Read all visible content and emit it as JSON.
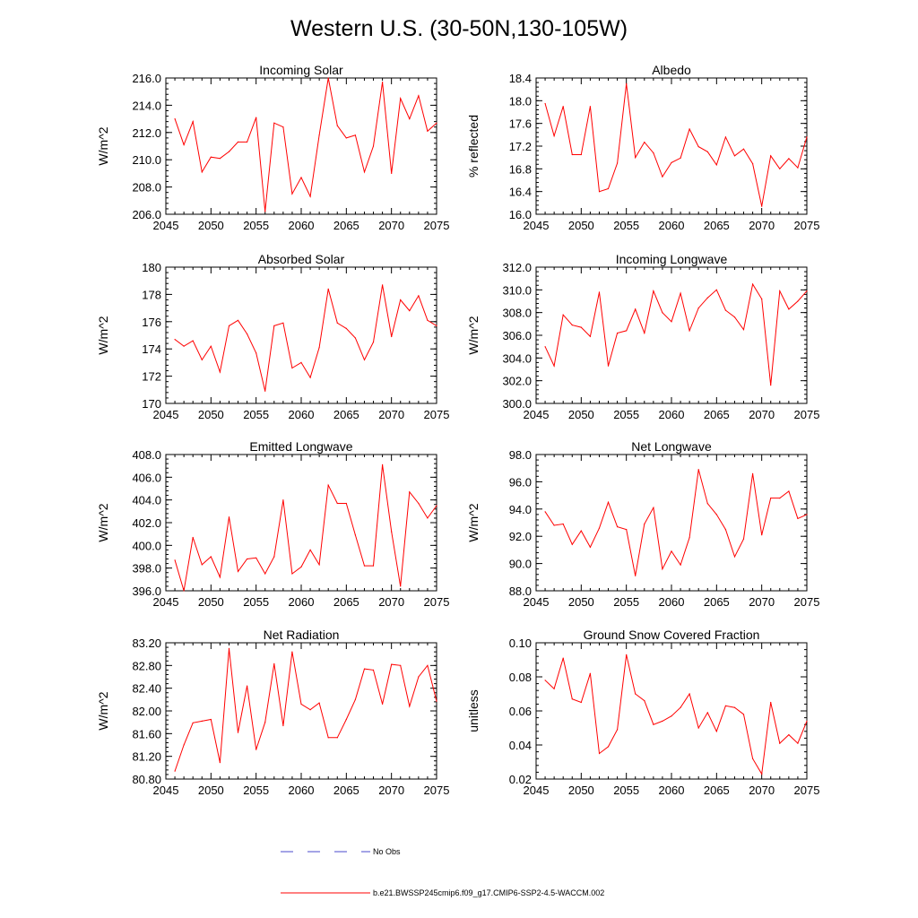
{
  "figure_title": "Western U.S. (30-50N,130-105W)",
  "legend": {
    "entries": [
      {
        "label": "No Obs",
        "color": "#4a4acd",
        "style": "dashed"
      },
      {
        "label": "b.e21.BWSSP245cmip6.f09_g17.CMIP6-SSP2-4.5-WACCM.002",
        "color": "#ff0000",
        "style": "solid"
      }
    ]
  },
  "colors": {
    "series": "#ff0000",
    "axis": "#000000",
    "obs": "#4a4acd"
  },
  "chart_data": [
    {
      "type": "line",
      "title": "Incoming Solar",
      "xlabel": "",
      "ylabel": "W/m^2",
      "xlim": [
        2045,
        2075
      ],
      "ylim": [
        206,
        216
      ],
      "yticks": [
        206,
        208,
        210,
        212,
        214,
        216
      ],
      "ytick_labels": [
        "206.0",
        "208.0",
        "210.0",
        "212.0",
        "214.0",
        "216.0"
      ],
      "y_minor": 0.4,
      "xticks": [
        2045,
        2050,
        2055,
        2060,
        2065,
        2070,
        2075
      ],
      "xtick_labels": [
        "2045",
        "2050",
        "2055",
        "2060",
        "2065",
        "2070",
        "2075"
      ],
      "x": [
        2046,
        2047,
        2048,
        2049,
        2050,
        2051,
        2052,
        2053,
        2054,
        2055,
        2056,
        2057,
        2058,
        2059,
        2060,
        2061,
        2062,
        2063,
        2064,
        2065,
        2066,
        2067,
        2068,
        2069,
        2070,
        2071,
        2072,
        2073,
        2074,
        2075
      ],
      "values": [
        213.0,
        211.1,
        212.8,
        209.1,
        210.2,
        210.1,
        210.6,
        211.3,
        211.3,
        213.1,
        206.2,
        212.7,
        212.4,
        207.5,
        208.7,
        207.3,
        211.8,
        216.0,
        212.5,
        211.6,
        211.8,
        209.1,
        211.0,
        215.7,
        209.0,
        214.5,
        213.0,
        214.7,
        212.1,
        212.7
      ]
    },
    {
      "type": "line",
      "title": "Albedo",
      "xlabel": "",
      "ylabel": "% reflected",
      "xlim": [
        2045,
        2075
      ],
      "ylim": [
        16.0,
        18.4
      ],
      "yticks": [
        16.0,
        16.4,
        16.8,
        17.2,
        17.6,
        18.0,
        18.4
      ],
      "ytick_labels": [
        "16.0",
        "16.4",
        "16.8",
        "17.2",
        "17.6",
        "18.0",
        "18.4"
      ],
      "y_minor": 0.08,
      "xticks": [
        2045,
        2050,
        2055,
        2060,
        2065,
        2070,
        2075
      ],
      "xtick_labels": [
        "2045",
        "2050",
        "2055",
        "2060",
        "2065",
        "2070",
        "2075"
      ],
      "x": [
        2046,
        2047,
        2048,
        2049,
        2050,
        2051,
        2052,
        2053,
        2054,
        2055,
        2056,
        2057,
        2058,
        2059,
        2060,
        2061,
        2062,
        2063,
        2064,
        2065,
        2066,
        2067,
        2068,
        2069,
        2070,
        2071,
        2072,
        2073,
        2074,
        2075
      ],
      "values": [
        17.95,
        17.38,
        17.9,
        17.05,
        17.05,
        17.9,
        16.4,
        16.45,
        16.9,
        18.3,
        17.0,
        17.27,
        17.08,
        16.66,
        16.91,
        16.99,
        17.5,
        17.19,
        17.1,
        16.87,
        17.36,
        17.03,
        17.15,
        16.89,
        16.14,
        17.03,
        16.8,
        16.98,
        16.82,
        17.36
      ]
    },
    {
      "type": "line",
      "title": "Absorbed Solar",
      "xlabel": "",
      "ylabel": "W/m^2",
      "xlim": [
        2045,
        2075
      ],
      "ylim": [
        170,
        180
      ],
      "yticks": [
        170,
        172,
        174,
        176,
        178,
        180
      ],
      "ytick_labels": [
        "170",
        "172",
        "174",
        "176",
        "178",
        "180"
      ],
      "y_minor": 0.4,
      "xticks": [
        2045,
        2050,
        2055,
        2060,
        2065,
        2070,
        2075
      ],
      "xtick_labels": [
        "2045",
        "2050",
        "2055",
        "2060",
        "2065",
        "2070",
        "2075"
      ],
      "x": [
        2046,
        2047,
        2048,
        2049,
        2050,
        2051,
        2052,
        2053,
        2054,
        2055,
        2056,
        2057,
        2058,
        2059,
        2060,
        2061,
        2062,
        2063,
        2064,
        2065,
        2066,
        2067,
        2068,
        2069,
        2070,
        2071,
        2072,
        2073,
        2074,
        2075
      ],
      "values": [
        174.7,
        174.2,
        174.6,
        173.2,
        174.2,
        172.3,
        175.7,
        176.1,
        175.1,
        173.7,
        170.9,
        175.7,
        175.9,
        172.6,
        173.0,
        171.9,
        174.1,
        178.4,
        175.9,
        175.5,
        174.8,
        173.2,
        174.5,
        178.7,
        174.9,
        177.6,
        176.8,
        177.9,
        176.1,
        175.7
      ]
    },
    {
      "type": "line",
      "title": "Incoming Longwave",
      "xlabel": "",
      "ylabel": "W/m^2",
      "xlim": [
        2045,
        2075
      ],
      "ylim": [
        300,
        312
      ],
      "yticks": [
        300,
        302,
        304,
        306,
        308,
        310,
        312
      ],
      "ytick_labels": [
        "300.0",
        "302.0",
        "304.0",
        "306.0",
        "308.0",
        "310.0",
        "312.0"
      ],
      "y_minor": 0.4,
      "xticks": [
        2045,
        2050,
        2055,
        2060,
        2065,
        2070,
        2075
      ],
      "xtick_labels": [
        "2045",
        "2050",
        "2055",
        "2060",
        "2065",
        "2070",
        "2075"
      ],
      "x": [
        2046,
        2047,
        2048,
        2049,
        2050,
        2051,
        2052,
        2053,
        2054,
        2055,
        2056,
        2057,
        2058,
        2059,
        2060,
        2061,
        2062,
        2063,
        2064,
        2065,
        2066,
        2067,
        2068,
        2069,
        2070,
        2071,
        2072,
        2073,
        2074,
        2075
      ],
      "values": [
        305.0,
        303.3,
        307.8,
        306.9,
        306.7,
        305.9,
        309.8,
        303.3,
        306.2,
        306.4,
        308.3,
        306.2,
        309.9,
        308.0,
        307.2,
        309.7,
        306.4,
        308.4,
        309.3,
        310.0,
        308.2,
        307.6,
        306.5,
        310.5,
        309.2,
        301.6,
        309.9,
        308.3,
        309.0,
        309.9
      ]
    },
    {
      "type": "line",
      "title": "Emitted Longwave",
      "xlabel": "",
      "ylabel": "W/m^2",
      "xlim": [
        2045,
        2075
      ],
      "ylim": [
        396,
        408
      ],
      "yticks": [
        396,
        398,
        400,
        402,
        404,
        406,
        408
      ],
      "ytick_labels": [
        "396.0",
        "398.0",
        "400.0",
        "402.0",
        "404.0",
        "406.0",
        "408.0"
      ],
      "y_minor": 0.4,
      "xticks": [
        2045,
        2050,
        2055,
        2060,
        2065,
        2070,
        2075
      ],
      "xtick_labels": [
        "2045",
        "2050",
        "2055",
        "2060",
        "2065",
        "2070",
        "2075"
      ],
      "x": [
        2046,
        2047,
        2048,
        2049,
        2050,
        2051,
        2052,
        2053,
        2054,
        2055,
        2056,
        2057,
        2058,
        2059,
        2060,
        2061,
        2062,
        2063,
        2064,
        2065,
        2066,
        2067,
        2068,
        2069,
        2070,
        2071,
        2072,
        2073,
        2074,
        2075
      ],
      "values": [
        398.7,
        396.0,
        400.7,
        398.3,
        399.0,
        397.2,
        402.5,
        397.7,
        398.8,
        398.9,
        397.5,
        399.0,
        404.0,
        397.5,
        398.1,
        399.6,
        398.3,
        405.3,
        403.7,
        403.7,
        400.9,
        398.2,
        398.2,
        407.1,
        401.2,
        396.4,
        404.7,
        403.7,
        402.4,
        403.5
      ]
    },
    {
      "type": "line",
      "title": "Net Longwave",
      "xlabel": "",
      "ylabel": "W/m^2",
      "xlim": [
        2045,
        2075
      ],
      "ylim": [
        88,
        98
      ],
      "yticks": [
        88,
        90,
        92,
        94,
        96,
        98
      ],
      "ytick_labels": [
        "88.0",
        "90.0",
        "92.0",
        "94.0",
        "96.0",
        "98.0"
      ],
      "y_minor": 0.4,
      "xticks": [
        2045,
        2050,
        2055,
        2060,
        2065,
        2070,
        2075
      ],
      "xtick_labels": [
        "2045",
        "2050",
        "2055",
        "2060",
        "2065",
        "2070",
        "2075"
      ],
      "x": [
        2046,
        2047,
        2048,
        2049,
        2050,
        2051,
        2052,
        2053,
        2054,
        2055,
        2056,
        2057,
        2058,
        2059,
        2060,
        2061,
        2062,
        2063,
        2064,
        2065,
        2066,
        2067,
        2068,
        2069,
        2070,
        2071,
        2072,
        2073,
        2074,
        2075
      ],
      "values": [
        93.8,
        92.8,
        92.9,
        91.4,
        92.4,
        91.2,
        92.6,
        94.5,
        92.7,
        92.5,
        89.1,
        92.9,
        94.1,
        89.6,
        90.9,
        89.9,
        91.9,
        96.9,
        94.4,
        93.6,
        92.5,
        90.5,
        91.8,
        96.6,
        92.1,
        94.8,
        94.8,
        95.3,
        93.3,
        93.6
      ]
    },
    {
      "type": "line",
      "title": "Net Radiation",
      "xlabel": "",
      "ylabel": "W/m^2",
      "xlim": [
        2045,
        2075
      ],
      "ylim": [
        80.8,
        83.2
      ],
      "yticks": [
        80.8,
        81.2,
        81.6,
        82.0,
        82.4,
        82.8,
        83.2
      ],
      "ytick_labels": [
        "80.80",
        "81.20",
        "81.60",
        "82.00",
        "82.40",
        "82.80",
        "83.20"
      ],
      "y_minor": 0.08,
      "xticks": [
        2045,
        2050,
        2055,
        2060,
        2065,
        2070,
        2075
      ],
      "xtick_labels": [
        "2045",
        "2050",
        "2055",
        "2060",
        "2065",
        "2070",
        "2075"
      ],
      "x": [
        2046,
        2047,
        2048,
        2049,
        2050,
        2051,
        2052,
        2053,
        2054,
        2055,
        2056,
        2057,
        2058,
        2059,
        2060,
        2061,
        2062,
        2063,
        2064,
        2065,
        2066,
        2067,
        2068,
        2069,
        2070,
        2071,
        2072,
        2073,
        2074,
        2075
      ],
      "values": [
        80.94,
        81.4,
        81.79,
        81.82,
        81.85,
        81.09,
        83.1,
        81.62,
        82.44,
        81.32,
        81.8,
        82.83,
        81.74,
        83.04,
        82.12,
        82.02,
        82.14,
        81.53,
        81.53,
        81.85,
        82.2,
        82.74,
        82.72,
        82.12,
        82.82,
        82.8,
        82.08,
        82.6,
        82.8,
        82.17
      ]
    },
    {
      "type": "line",
      "title": "Ground Snow Covered Fraction",
      "xlabel": "",
      "ylabel": "unitless",
      "xlim": [
        2045,
        2075
      ],
      "ylim": [
        0.02,
        0.1
      ],
      "yticks": [
        0.02,
        0.04,
        0.06,
        0.08,
        0.1
      ],
      "ytick_labels": [
        "0.02",
        "0.04",
        "0.06",
        "0.08",
        "0.10"
      ],
      "y_minor": 0.004,
      "xticks": [
        2045,
        2050,
        2055,
        2060,
        2065,
        2070,
        2075
      ],
      "xtick_labels": [
        "2045",
        "2050",
        "2055",
        "2060",
        "2065",
        "2070",
        "2075"
      ],
      "x": [
        2046,
        2047,
        2048,
        2049,
        2050,
        2051,
        2052,
        2053,
        2054,
        2055,
        2056,
        2057,
        2058,
        2059,
        2060,
        2061,
        2062,
        2063,
        2064,
        2065,
        2066,
        2067,
        2068,
        2069,
        2070,
        2071,
        2072,
        2073,
        2074,
        2075
      ],
      "values": [
        0.078,
        0.073,
        0.091,
        0.067,
        0.065,
        0.082,
        0.035,
        0.039,
        0.049,
        0.093,
        0.07,
        0.066,
        0.052,
        0.054,
        0.057,
        0.062,
        0.07,
        0.05,
        0.059,
        0.048,
        0.063,
        0.062,
        0.058,
        0.032,
        0.023,
        0.065,
        0.041,
        0.046,
        0.041,
        0.054
      ]
    }
  ]
}
